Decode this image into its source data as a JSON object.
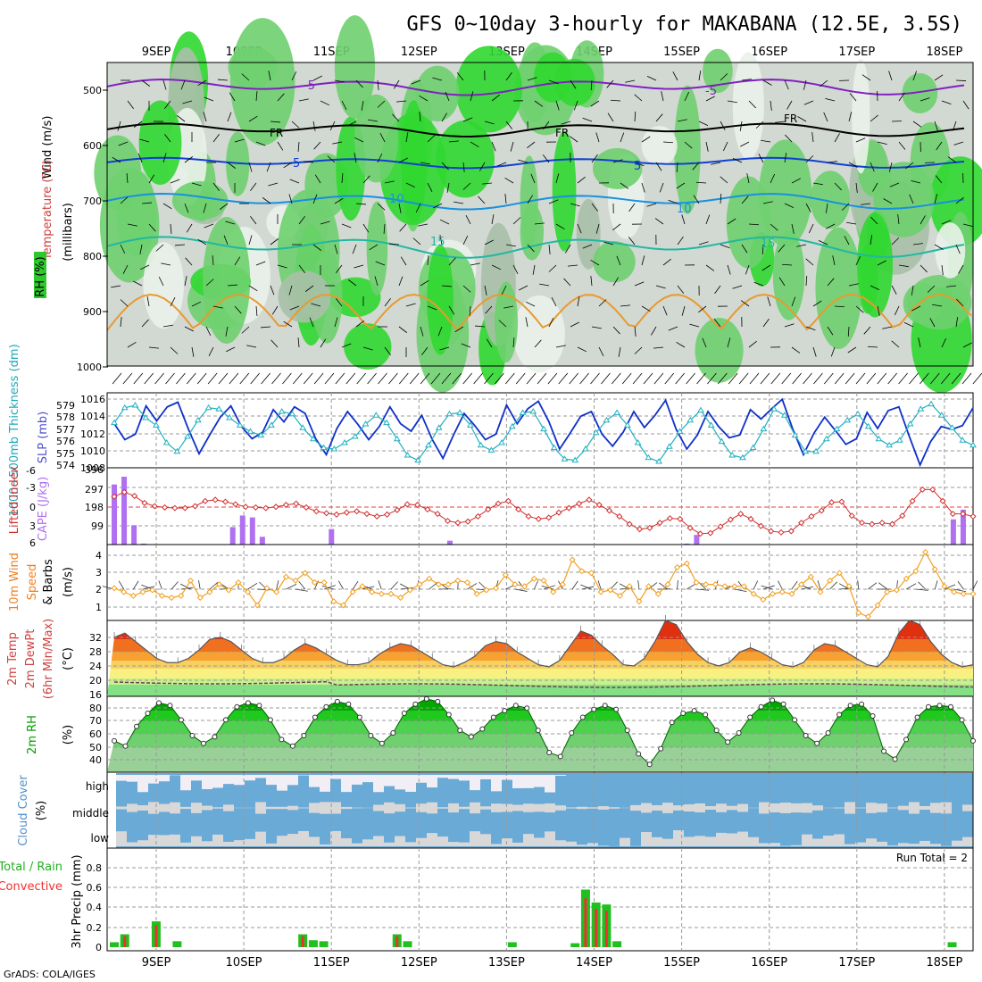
{
  "title": "GFS 0~10day 3-hourly for MAKABANA (12.5E, 3.5S)",
  "credit": "GrADS: COLA/IGES",
  "dates": [
    "9SEP",
    "10SEP",
    "11SEP",
    "12SEP",
    "13SEP",
    "14SEP",
    "15SEP",
    "16SEP",
    "17SEP",
    "18SEP"
  ],
  "panels": {
    "upper": {
      "label_wind": "Wind (m/s)",
      "label_temp": "Temperature (°C)",
      "label_rh": "RH (%)",
      "label_mb": "(millibars)",
      "yticks": [
        "500",
        "600",
        "700",
        "800",
        "900",
        "1000"
      ],
      "contour_labels": [
        "-5",
        "-5",
        "FR",
        "FR",
        "FR",
        "5",
        "5",
        "10",
        "10",
        "15",
        "15"
      ]
    },
    "thickness": {
      "label_thick": "1000~500mb Thickness (dm)",
      "label_slp": "SLP (mb)",
      "left_ticks": [
        "579",
        "578",
        "577",
        "576",
        "575",
        "574"
      ],
      "right_ticks": [
        "1016",
        "1014",
        "1012",
        "1010",
        "1008"
      ]
    },
    "stability": {
      "label_li": "Lifted Index",
      "label_cape": "CAPE (J/kg)",
      "li_ticks": [
        "-6",
        "-3",
        "0",
        "3",
        "6"
      ],
      "cape_ticks": [
        "396",
        "297",
        "198",
        "99"
      ]
    },
    "wind10": {
      "label1": "10m Wind",
      "label2": "Speed",
      "label3": "& Barbs",
      "label4": "(m/s)",
      "yticks": [
        "4",
        "3",
        "2",
        "1"
      ]
    },
    "temp2m": {
      "label1": "2m Temp",
      "label2": "2m DewPt",
      "label3": "(6hr Min/Max)",
      "label4": "(°C)",
      "yticks": [
        "32",
        "28",
        "24",
        "20",
        "16"
      ]
    },
    "rh2m": {
      "label1": "2m RH",
      "label2": "(%)",
      "yticks": [
        "80",
        "70",
        "60",
        "50",
        "40"
      ]
    },
    "cloud": {
      "label1": "Cloud Cover",
      "label2": "(%)",
      "layers": [
        "high",
        "middle",
        "low"
      ]
    },
    "precip": {
      "label1": "Total / Rain",
      "label2": "Convective",
      "label3": "3hr Precip (mm)",
      "run_total": "Run Total = 2",
      "yticks": [
        "0.8",
        "0.6",
        "0.4",
        "0.2",
        "0"
      ]
    }
  },
  "colors": {
    "slp": "#1030c8",
    "thickness": "#20b0c0",
    "li": "#d03030",
    "cape": "#b070f0",
    "wind": "#f0a020",
    "rh_dark": "#00a000",
    "cloud_blue": "#6aaad6",
    "cloud_grey": "#d8d8d8",
    "precip_total": "#20c020",
    "precip_conv": "#f03030"
  },
  "chart_data": [
    {
      "type": "line",
      "name": "SLP",
      "ylim": [
        1008,
        1016
      ],
      "values": [
        1012.7,
        1011.0,
        1011.6,
        1014.6,
        1013.0,
        1014.5,
        1015.0,
        1012.1,
        1009.5,
        1011.5,
        1013.4,
        1014.6,
        1012.4,
        1011.1,
        1011.8,
        1014.2,
        1012.9,
        1014.5,
        1013.8,
        1011.1,
        1009.4,
        1012.2,
        1014.0,
        1012.6,
        1011.0,
        1012.4,
        1014.5,
        1012.7,
        1011.9,
        1013.6,
        1011.0,
        1009.0,
        1011.5,
        1013.8,
        1012.5,
        1011.0,
        1011.6,
        1014.7,
        1012.7,
        1014.3,
        1015.1,
        1012.9,
        1010.0,
        1011.7,
        1013.5,
        1014.0,
        1011.6,
        1010.3,
        1011.8,
        1014.0,
        1012.3,
        1013.6,
        1015.2,
        1012.1,
        1010.0,
        1011.5,
        1014.0,
        1012.4,
        1011.2,
        1011.5,
        1014.2,
        1013.2,
        1014.3,
        1015.3,
        1012.1,
        1009.4,
        1011.7,
        1013.4,
        1012.0,
        1010.5,
        1011.1,
        1013.9,
        1012.2,
        1014.1,
        1014.5,
        1011.3,
        1008.3,
        1010.8,
        1012.4,
        1012.1,
        1012.5,
        1014.4
      ]
    },
    {
      "type": "line",
      "name": "Thickness",
      "ylim": [
        574,
        580
      ],
      "values": [
        577.6,
        578.8,
        579.0,
        578.0,
        577.4,
        576.0,
        575.3,
        576.5,
        577.8,
        578.8,
        578.7,
        578.0,
        577.4,
        576.9,
        576.6,
        577.4,
        578.5,
        578.3,
        577.2,
        576.3,
        575.6,
        575.5,
        576.0,
        576.5,
        577.5,
        578.2,
        577.6,
        576.3,
        575.0,
        574.6,
        575.8,
        577.2,
        578.3,
        578.4,
        577.4,
        575.8,
        575.4,
        576.0,
        577.3,
        578.4,
        578.5,
        577.1,
        575.6,
        574.7,
        574.6,
        575.5,
        576.8,
        577.8,
        578.4,
        577.4,
        576.0,
        574.8,
        574.5,
        575.7,
        576.9,
        577.8,
        578.6,
        577.4,
        576.1,
        575.0,
        574.8,
        575.6,
        577.1,
        578.7,
        578.2,
        576.6,
        575.3,
        575.3,
        576.3,
        577.1,
        577.8,
        578.3,
        577.3,
        576.3,
        575.8,
        576.2,
        577.5,
        578.7,
        579.1,
        578.2,
        577.2,
        576.2,
        575.8
      ]
    },
    {
      "type": "line",
      "name": "Lifted Index",
      "ylim": [
        6,
        -6
      ],
      "values": [
        -1.5,
        -2.2,
        -1.6,
        -0.5,
        0.0,
        0.2,
        0.3,
        0.3,
        0.0,
        -0.8,
        -1.0,
        -0.7,
        -0.3,
        0.1,
        0.2,
        0.3,
        0.1,
        -0.2,
        -0.4,
        0.2,
        0.8,
        1.1,
        1.3,
        1.0,
        0.8,
        1.2,
        1.6,
        1.3,
        0.6,
        -0.3,
        -0.2,
        0.5,
        1.2,
        2.3,
        2.6,
        2.4,
        1.6,
        0.5,
        -0.4,
        -0.8,
        0.5,
        1.6,
        2.0,
        1.8,
        1.0,
        0.3,
        -0.4,
        -1.0,
        -0.2,
        0.7,
        1.6,
        2.8,
        3.6,
        3.4,
        2.6,
        1.9,
        2.0,
        3.4,
        4.3,
        4.2,
        3.2,
        2.1,
        1.2,
        2.0,
        3.1,
        3.9,
        4.1,
        3.9,
        2.6,
        1.6,
        0.7,
        -0.6,
        -0.7,
        1.5,
        2.6,
        2.8,
        2.6,
        2.8,
        1.5,
        -0.8,
        -2.6,
        -2.6,
        -0.8,
        1.2,
        1.2,
        1.6
      ]
    },
    {
      "type": "bar",
      "name": "CAPE",
      "ylim": [
        0,
        396
      ],
      "values": [
        310,
        350,
        100,
        5,
        0,
        0,
        0,
        0,
        0,
        0,
        0,
        0,
        90,
        150,
        140,
        40,
        0,
        0,
        0,
        0,
        0,
        0,
        80,
        0,
        0,
        0,
        0,
        0,
        0,
        0,
        0,
        0,
        0,
        0,
        20,
        0,
        0,
        0,
        0,
        0,
        0,
        0,
        0,
        0,
        0,
        0,
        0,
        0,
        0,
        0,
        0,
        0,
        0,
        0,
        0,
        0,
        0,
        0,
        5,
        50,
        0,
        0,
        0,
        0,
        0,
        0,
        0,
        0,
        0,
        0,
        0,
        0,
        0,
        0,
        0,
        0,
        0,
        0,
        0,
        0,
        0,
        0,
        0,
        0,
        0,
        130,
        180,
        0
      ]
    },
    {
      "type": "line",
      "name": "10m Wind Speed",
      "ylim": [
        0.5,
        4.5
      ],
      "values": [
        2.2,
        2.0,
        1.8,
        2.0,
        2.1,
        1.8,
        1.7,
        1.8,
        2.6,
        1.7,
        2.0,
        2.4,
        2.1,
        2.5,
        2.0,
        1.3,
        2.2,
        2.0,
        2.8,
        2.6,
        3.0,
        2.5,
        2.5,
        1.5,
        1.3,
        2.0,
        2.3,
        2.0,
        1.9,
        1.9,
        1.7,
        2.1,
        2.4,
        2.7,
        2.4,
        2.4,
        2.6,
        2.5,
        1.9,
        2.1,
        2.2,
        2.9,
        2.4,
        2.3,
        2.7,
        2.6,
        2.0,
        2.4,
        3.7,
        3.1,
        3.0,
        2.0,
        2.1,
        1.8,
        2.3,
        1.5,
        2.3,
        1.9,
        2.4,
        3.3,
        3.5,
        2.5,
        2.4,
        2.4,
        2.3,
        2.3,
        2.3,
        1.9,
        1.6,
        1.9,
        2.0,
        1.9,
        2.4,
        2.8,
        2.0,
        2.6,
        3.0,
        2.3,
        0.9,
        0.7,
        1.3,
        2.0,
        2.1,
        2.7,
        3.1,
        4.1,
        3.2,
        2.3,
        2.0,
        1.9,
        1.9
      ]
    },
    {
      "type": "area",
      "name": "2m Temp",
      "ylim": [
        16,
        34
      ],
      "values": [
        30,
        31,
        29,
        27,
        25,
        24,
        24,
        25,
        27,
        29.5,
        30,
        29,
        27,
        25,
        24,
        24,
        25,
        27,
        28.5,
        27.5,
        26,
        24.5,
        23.5,
        23.5,
        24,
        26,
        27.5,
        28.5,
        28,
        26.5,
        25,
        23.5,
        23,
        24,
        25.5,
        28,
        29,
        28.5,
        26.5,
        25,
        23.5,
        23,
        24.5,
        28,
        31.5,
        30.5,
        28,
        26,
        23.5,
        23.2,
        25,
        29,
        34,
        33,
        29,
        26,
        24,
        23.2,
        24,
        26.5,
        27.5,
        26.5,
        25,
        23.5,
        23,
        24,
        27,
        28.5,
        28,
        26.5,
        25,
        23.5,
        23,
        25.5,
        31,
        34,
        33,
        29,
        26,
        24,
        23,
        23.5
      ]
    },
    {
      "type": "area",
      "name": "2m RH",
      "ylim": [
        30,
        88
      ],
      "values": [
        54,
        50,
        65,
        75,
        83,
        81,
        70,
        58,
        52,
        57,
        70,
        80,
        83,
        81,
        70,
        55,
        50,
        58,
        72,
        80,
        84,
        82,
        72,
        58,
        52,
        60,
        75,
        82,
        86,
        84,
        74,
        62,
        57,
        63,
        72,
        77,
        81,
        79,
        62,
        45,
        42,
        60,
        72,
        78,
        81,
        78,
        62,
        44,
        36,
        48,
        68,
        75,
        77,
        74,
        62,
        53,
        60,
        72,
        80,
        85,
        82,
        70,
        58,
        52,
        60,
        74,
        81,
        82,
        73,
        46,
        40,
        55,
        72,
        80,
        81,
        80,
        70,
        54
      ]
    },
    {
      "type": "bar",
      "name": "3hr Precip",
      "ylim": [
        0,
        1.0
      ],
      "values": [
        0.05,
        0.13,
        0.0,
        0.0,
        0.26,
        0.0,
        0.06,
        0.0,
        0.0,
        0.0,
        0.0,
        0.0,
        0.0,
        0.0,
        0.0,
        0.0,
        0.0,
        0.0,
        0.13,
        0.07,
        0.06,
        0.0,
        0.0,
        0.0,
        0.0,
        0.0,
        0.0,
        0.13,
        0.06,
        0.0,
        0.0,
        0.0,
        0.0,
        0.0,
        0.0,
        0.0,
        0.0,
        0.0,
        0.05,
        0.0,
        0.0,
        0.0,
        0.0,
        0.0,
        0.04,
        0.58,
        0.45,
        0.43,
        0.06,
        0.0,
        0.0,
        0.0,
        0.0,
        0.0,
        0.0,
        0.0,
        0.0,
        0.0,
        0.0,
        0.0,
        0.0,
        0.0,
        0.0,
        0.0,
        0.0,
        0.0,
        0.0,
        0.0,
        0.0,
        0.0,
        0.0,
        0.0,
        0.0,
        0.0,
        0.0,
        0.0,
        0.0,
        0.0,
        0.0,
        0.0,
        0.05,
        0.0,
        0.0
      ]
    }
  ]
}
